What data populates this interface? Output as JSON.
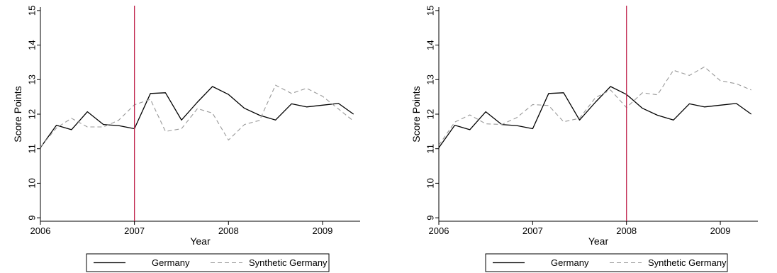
{
  "chart_data": [
    {
      "type": "line",
      "title": "",
      "xlabel": "Year",
      "ylabel": "Score Points",
      "xlim": [
        2006,
        2009.4
      ],
      "ylim": [
        8.9,
        15.1
      ],
      "xticks": [
        2006,
        2007,
        2008,
        2009
      ],
      "xtick_labels": [
        "2006",
        "2007",
        "2008",
        "2009"
      ],
      "yticks": [
        9,
        10,
        11,
        12,
        13,
        14,
        15
      ],
      "ytick_labels": [
        "9",
        "10",
        "11",
        "12",
        "13",
        "14",
        "15"
      ],
      "grid": false,
      "vline": 2007,
      "vline_color": "#c0254e",
      "legend": "bottom",
      "series": [
        {
          "name": "Germany",
          "color": "#000000",
          "dash": "solid",
          "x": [
            2006,
            2006.17,
            2006.33,
            2006.5,
            2006.67,
            2006.83,
            2007,
            2007.17,
            2007.33,
            2007.5,
            2007.67,
            2007.83,
            2008,
            2008.17,
            2008.33,
            2008.5,
            2008.67,
            2008.83,
            2009,
            2009.17,
            2009.33
          ],
          "values": [
            11.03,
            11.68,
            11.55,
            12.07,
            11.7,
            11.67,
            11.58,
            12.6,
            12.62,
            11.83,
            12.35,
            12.8,
            12.57,
            12.17,
            11.97,
            11.83,
            12.3,
            12.21,
            12.26,
            12.31,
            12.0
          ]
        },
        {
          "name": "Synthetic Germany",
          "color": "#999999",
          "dash": "dashed",
          "x": [
            2006,
            2006.17,
            2006.33,
            2006.5,
            2006.67,
            2006.83,
            2007,
            2007.17,
            2007.33,
            2007.5,
            2007.67,
            2007.83,
            2008,
            2008.17,
            2008.33,
            2008.5,
            2008.67,
            2008.83,
            2009,
            2009.17,
            2009.33
          ],
          "values": [
            11.05,
            11.6,
            11.88,
            11.63,
            11.63,
            11.82,
            12.27,
            12.43,
            11.5,
            11.58,
            12.16,
            12.03,
            11.25,
            11.7,
            11.82,
            12.84,
            12.6,
            12.75,
            12.52,
            12.15,
            11.8
          ]
        }
      ]
    },
    {
      "type": "line",
      "title": "",
      "xlabel": "Year",
      "ylabel": "Score Points",
      "xlim": [
        2006,
        2009.4
      ],
      "ylim": [
        8.9,
        15.1
      ],
      "xticks": [
        2006,
        2007,
        2008,
        2009
      ],
      "xtick_labels": [
        "2006",
        "2007",
        "2008",
        "2009"
      ],
      "yticks": [
        9,
        10,
        11,
        12,
        13,
        14,
        15
      ],
      "ytick_labels": [
        "9",
        "10",
        "11",
        "12",
        "13",
        "14",
        "15"
      ],
      "grid": false,
      "vline": 2008,
      "vline_color": "#c0254e",
      "legend": "bottom",
      "series": [
        {
          "name": "Germany",
          "color": "#000000",
          "dash": "solid",
          "x": [
            2006,
            2006.17,
            2006.33,
            2006.5,
            2006.67,
            2006.83,
            2007,
            2007.17,
            2007.33,
            2007.5,
            2007.67,
            2007.83,
            2008,
            2008.17,
            2008.33,
            2008.5,
            2008.67,
            2008.83,
            2009,
            2009.17,
            2009.33
          ],
          "values": [
            11.03,
            11.68,
            11.55,
            12.07,
            11.7,
            11.67,
            11.58,
            12.6,
            12.62,
            11.83,
            12.35,
            12.8,
            12.57,
            12.17,
            11.97,
            11.83,
            12.3,
            12.21,
            12.26,
            12.31,
            12.0
          ]
        },
        {
          "name": "Synthetic Germany",
          "color": "#999999",
          "dash": "dashed",
          "x": [
            2006,
            2006.17,
            2006.33,
            2006.5,
            2006.67,
            2006.83,
            2007,
            2007.17,
            2007.33,
            2007.5,
            2007.67,
            2007.83,
            2008,
            2008.17,
            2008.33,
            2008.5,
            2008.67,
            2008.83,
            2009,
            2009.17,
            2009.33
          ],
          "values": [
            11.1,
            11.77,
            11.98,
            11.72,
            11.7,
            11.9,
            12.28,
            12.25,
            11.78,
            11.88,
            12.48,
            12.7,
            12.19,
            12.62,
            12.56,
            13.27,
            13.12,
            13.37,
            12.97,
            12.88,
            12.7
          ]
        }
      ]
    }
  ]
}
